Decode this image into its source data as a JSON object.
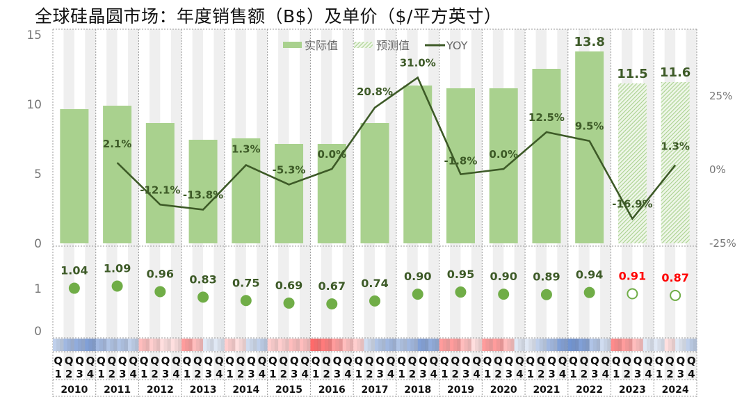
{
  "chart_data": {
    "type": "bar",
    "title": "全球硅晶圆市场：年度销售额（B$）及单价（$/平方英寸）",
    "categories": [
      "2010",
      "2011",
      "2012",
      "2013",
      "2014",
      "2015",
      "2016",
      "2017",
      "2018",
      "2019",
      "2020",
      "2021",
      "2022",
      "2023",
      "2024"
    ],
    "quarter_labels": [
      "Q1",
      "Q2",
      "Q3",
      "Q4"
    ],
    "legend": [
      "实际值",
      "预测值",
      "YOY"
    ],
    "legend_placement": "top-center",
    "colors": {
      "actual": "#a9d18e",
      "forecast_hatch": "#a9d18e",
      "yoy_line": "#3d5a27",
      "price_dot": "#70ad47",
      "forecast_label": "#ff0000",
      "label": "#3d5a27",
      "heat_pos": "#4472c4",
      "heat_neg": "#ff3b3b"
    },
    "sales": {
      "ylim": [
        0,
        15
      ],
      "yticks": [
        "0",
        "5",
        "10",
        "15"
      ],
      "values": [
        9.65,
        9.9,
        8.65,
        7.45,
        7.55,
        7.15,
        7.15,
        8.65,
        11.35,
        11.15,
        11.15,
        12.55,
        13.8,
        11.5,
        11.6
      ],
      "forecast": [
        false,
        false,
        false,
        false,
        false,
        false,
        false,
        false,
        false,
        false,
        false,
        false,
        false,
        true,
        true
      ],
      "labels": [
        "",
        "",
        "",
        "",
        "",
        "",
        "",
        "",
        "",
        "",
        "",
        "",
        "13.8",
        "11.5",
        "11.6"
      ]
    },
    "yoy": {
      "ylim": [
        -25,
        25
      ],
      "yticks": [
        "-25%",
        "0%",
        "25%"
      ],
      "values": [
        null,
        2.1,
        -12.1,
        -13.8,
        1.3,
        -5.3,
        0.0,
        20.8,
        31.0,
        -1.8,
        0.0,
        12.5,
        9.5,
        -16.9,
        1.3
      ],
      "labels": [
        "",
        "2.1%",
        "-12.1%",
        "-13.8%",
        "1.3%",
        "-5.3%",
        "0.0%",
        "20.8%",
        "31.0%",
        "-1.8%",
        "0.0%",
        "12.5%",
        "9.5%",
        "-16.9%",
        "1.3%"
      ]
    },
    "price": {
      "ylim": [
        0,
        1.9
      ],
      "yticks": [
        "0",
        "1"
      ],
      "values": [
        1.04,
        1.09,
        0.96,
        0.83,
        0.75,
        0.69,
        0.67,
        0.74,
        0.9,
        0.95,
        0.9,
        0.89,
        0.94,
        0.91,
        0.87
      ],
      "labels": [
        "1.04",
        "1.09",
        "0.96",
        "0.83",
        "0.75",
        "0.69",
        "0.67",
        "0.74",
        "0.90",
        "0.95",
        "0.90",
        "0.89",
        "0.94",
        "0.91",
        "0.87"
      ]
    },
    "heatmap": [
      [
        0.3,
        0.5,
        0.6,
        0.7
      ],
      [
        0.5,
        0.4,
        0.4,
        0.3
      ],
      [
        -0.3,
        -0.2,
        -0.1,
        -0.1
      ],
      [
        -0.5,
        -0.3,
        0.1,
        0.1
      ],
      [
        -0.2,
        -0.1,
        0.2,
        0.3
      ],
      [
        -0.2,
        -0.2,
        -0.3,
        -0.3
      ],
      [
        -0.8,
        -0.7,
        -0.5,
        -0.3
      ],
      [
        -0.2,
        0.2,
        0.4,
        0.5
      ],
      [
        0.4,
        0.5,
        0.7,
        0.6
      ],
      [
        -0.5,
        -0.5,
        -0.3,
        -0.1
      ],
      [
        -0.5,
        -0.5,
        -0.3,
        0.1
      ],
      [
        0.1,
        0.3,
        0.5,
        0.7
      ],
      [
        0.8,
        0.7,
        0.4,
        0.2
      ],
      [
        -0.6,
        -0.5,
        -0.3,
        0.1
      ],
      [
        0.1,
        -0.1,
        0.1,
        0.3
      ]
    ]
  }
}
